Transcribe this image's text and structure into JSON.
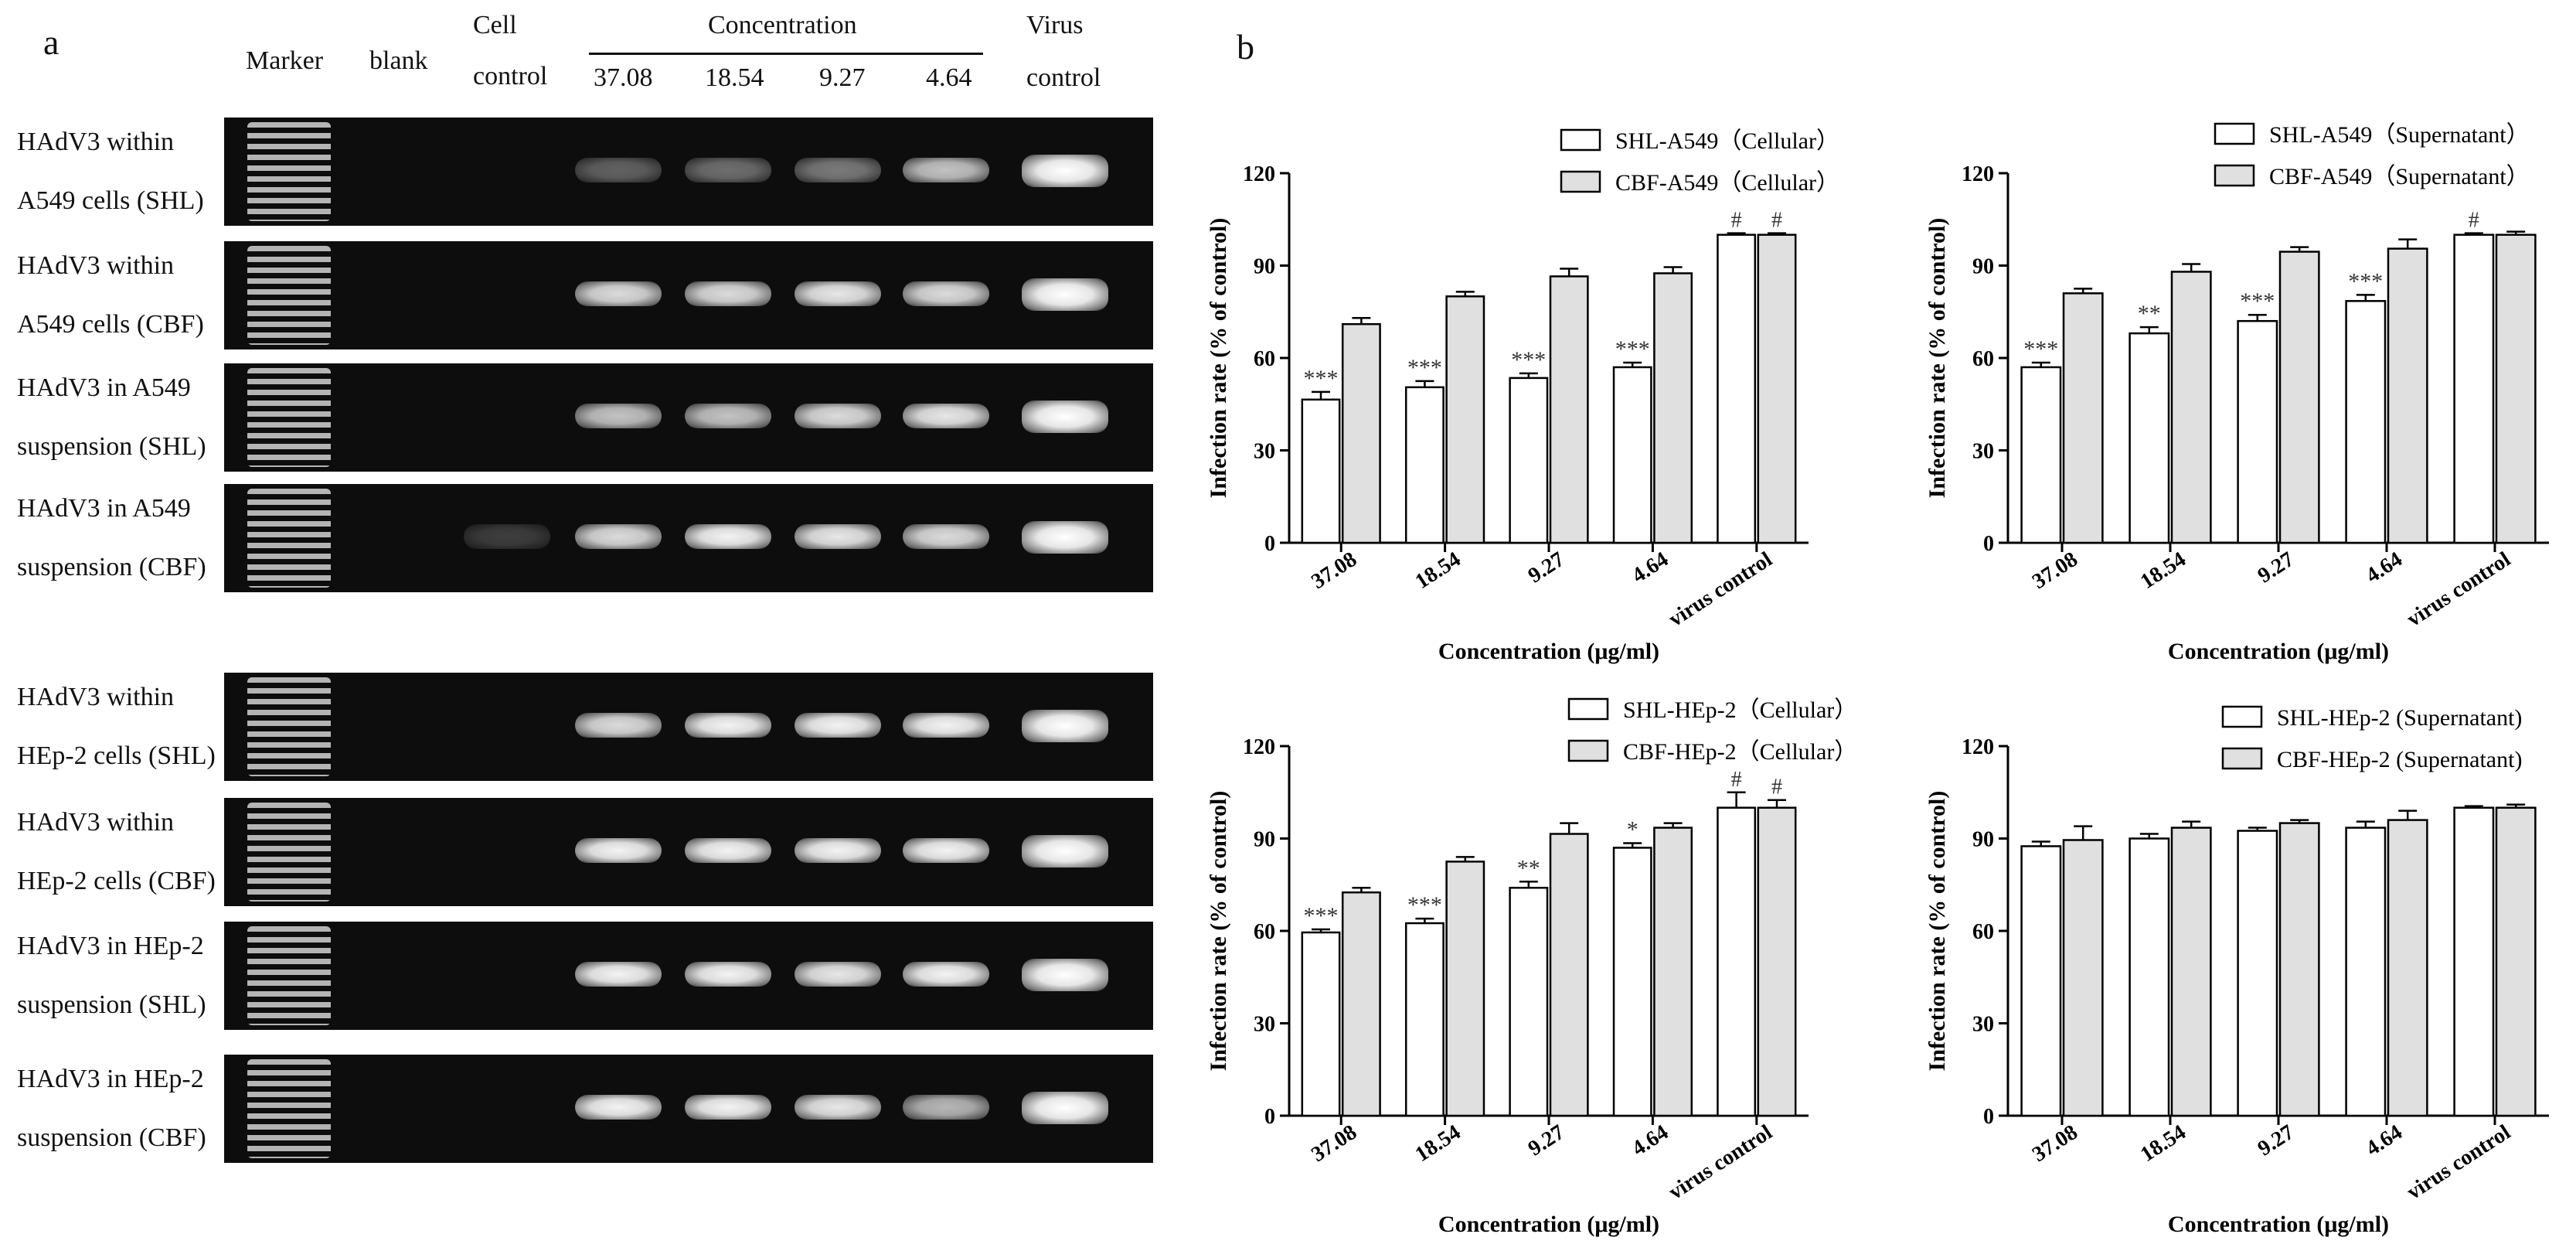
{
  "panel_a": {
    "letter": "a",
    "header": {
      "marker": "Marker",
      "blank": "blank",
      "cell_control_1": "Cell",
      "cell_control_2": "control",
      "concentration": "Concentration",
      "concs": [
        "37.08",
        "18.54",
        "9.27",
        "4.64"
      ],
      "virus_control_1": "Virus",
      "virus_control_2": "control"
    },
    "rows": [
      {
        "line1": "HAdV3 within",
        "line2": "A549  cells (SHL)",
        "bands": [
          0,
          0,
          0,
          0.35,
          0.4,
          0.45,
          0.75,
          1.0
        ]
      },
      {
        "line1": "HAdV3 within",
        "line2": "A549 cells (CBF)",
        "bands": [
          0,
          0,
          0,
          0.85,
          0.85,
          0.9,
          0.85,
          1.0
        ]
      },
      {
        "line1": "HAdV3 in A549",
        "line2": "suspension (SHL)",
        "bands": [
          0,
          0,
          0,
          0.75,
          0.75,
          0.85,
          0.9,
          1.0
        ]
      },
      {
        "line1": "HAdV3 in A549",
        "line2": "suspension (CBF)",
        "bands": [
          0,
          0,
          0.2,
          0.85,
          0.95,
          0.9,
          0.85,
          1.0
        ]
      },
      {
        "line1": "HAdV3 within",
        "line2": "HEp-2 cells (SHL)",
        "bands": [
          0,
          0,
          0,
          0.85,
          0.95,
          0.95,
          0.95,
          1.0
        ]
      },
      {
        "line1": "HAdV3 within",
        "line2": "HEp-2 cells (CBF)",
        "bands": [
          0,
          0,
          0,
          0.95,
          0.95,
          0.95,
          0.95,
          1.0
        ]
      },
      {
        "line1": "HAdV3 in HEp-2",
        "line2": "suspension (SHL)",
        "bands": [
          0,
          0,
          0,
          0.95,
          0.95,
          0.9,
          0.95,
          1.0
        ]
      },
      {
        "line1": "HAdV3 in HEp-2",
        "line2": "suspension (CBF)",
        "bands": [
          0,
          0,
          0,
          0.95,
          0.95,
          0.9,
          0.7,
          1.0
        ]
      }
    ]
  },
  "panel_b": {
    "letter": "b"
  },
  "chart_data": [
    {
      "type": "bar",
      "categories": [
        "37.08",
        "18.54",
        "9.27",
        "4.64",
        "virus control"
      ],
      "xlabel": "Concentration (μg/ml)",
      "ylabel": "Infection rate (% of control)",
      "ylim": [
        0,
        120
      ],
      "yticks": [
        0,
        30,
        60,
        90,
        120
      ],
      "legend_position": "top-right",
      "series": [
        {
          "name": "SHL-A549（Cellular）",
          "fill": "#ffffff",
          "values": [
            46.5,
            50.5,
            53.5,
            57.0,
            100
          ],
          "errors": [
            2.5,
            2.0,
            1.5,
            1.5,
            0.5
          ],
          "marks": [
            "***",
            "***",
            "***",
            "***",
            "#"
          ]
        },
        {
          "name": "CBF-A549（Cellular）",
          "fill": "#e0e0e0",
          "values": [
            71.0,
            80.0,
            86.5,
            87.5,
            100
          ],
          "errors": [
            2.0,
            1.5,
            2.5,
            2.0,
            0.5
          ],
          "marks": [
            "",
            "",
            "",
            "",
            "#"
          ]
        }
      ]
    },
    {
      "type": "bar",
      "categories": [
        "37.08",
        "18.54",
        "9.27",
        "4.64",
        "virus control"
      ],
      "xlabel": "Concentration (μg/ml)",
      "ylabel": "Infection rate (% of control)",
      "ylim": [
        0,
        120
      ],
      "yticks": [
        0,
        30,
        60,
        90,
        120
      ],
      "legend_position": "top-right",
      "series": [
        {
          "name": "SHL-A549（Supernatant）",
          "fill": "#ffffff",
          "values": [
            57.0,
            68.0,
            72.0,
            78.5,
            100
          ],
          "errors": [
            1.5,
            2.0,
            2.0,
            2.0,
            0.5
          ],
          "marks": [
            "***",
            "**",
            "***",
            "***",
            "#"
          ]
        },
        {
          "name": "CBF-A549（Supernatant）",
          "fill": "#e0e0e0",
          "values": [
            81.0,
            88.0,
            94.5,
            95.5,
            100
          ],
          "errors": [
            1.5,
            2.5,
            1.5,
            3.0,
            1.0
          ],
          "marks": [
            "",
            "",
            "",
            "",
            ""
          ]
        }
      ]
    },
    {
      "type": "bar",
      "categories": [
        "37.08",
        "18.54",
        "9.27",
        "4.64",
        "virus control"
      ],
      "xlabel": "Concentration (μg/ml)",
      "ylabel": "Infection rate (% of control)",
      "ylim": [
        0,
        120
      ],
      "yticks": [
        0,
        30,
        60,
        90,
        120
      ],
      "legend_position": "top-right",
      "series": [
        {
          "name": "SHL-HEp-2（Cellular）",
          "fill": "#ffffff",
          "values": [
            59.5,
            62.5,
            74.0,
            87.0,
            100
          ],
          "errors": [
            1.0,
            1.5,
            2.0,
            1.5,
            5.0
          ],
          "marks": [
            "***",
            "***",
            "**",
            "*",
            "#"
          ]
        },
        {
          "name": "CBF-HEp-2（Cellular）",
          "fill": "#e0e0e0",
          "values": [
            72.5,
            82.5,
            91.5,
            93.5,
            100
          ],
          "errors": [
            1.5,
            1.5,
            3.5,
            1.5,
            2.5
          ],
          "marks": [
            "",
            "",
            "",
            "",
            "#"
          ]
        }
      ]
    },
    {
      "type": "bar",
      "categories": [
        "37.08",
        "18.54",
        "9.27",
        "4.64",
        "virus control"
      ],
      "xlabel": "Concentration (μg/ml)",
      "ylabel": "Infection rate (% of control)",
      "ylim": [
        0,
        120
      ],
      "yticks": [
        0,
        30,
        60,
        90,
        120
      ],
      "legend_position": "top-right",
      "series": [
        {
          "name": "SHL-HEp-2 (Supernatant)",
          "fill": "#ffffff",
          "values": [
            87.5,
            90.0,
            92.5,
            93.5,
            100
          ],
          "errors": [
            1.5,
            1.5,
            1.0,
            2.0,
            0.5
          ],
          "marks": [
            "",
            "",
            "",
            "",
            ""
          ]
        },
        {
          "name": "CBF-HEp-2 (Supernatant)",
          "fill": "#e0e0e0",
          "values": [
            89.5,
            93.5,
            95.0,
            96.0,
            100
          ],
          "errors": [
            4.5,
            2.0,
            1.0,
            3.0,
            1.0
          ],
          "marks": [
            "",
            "",
            "",
            "",
            ""
          ]
        }
      ]
    }
  ]
}
